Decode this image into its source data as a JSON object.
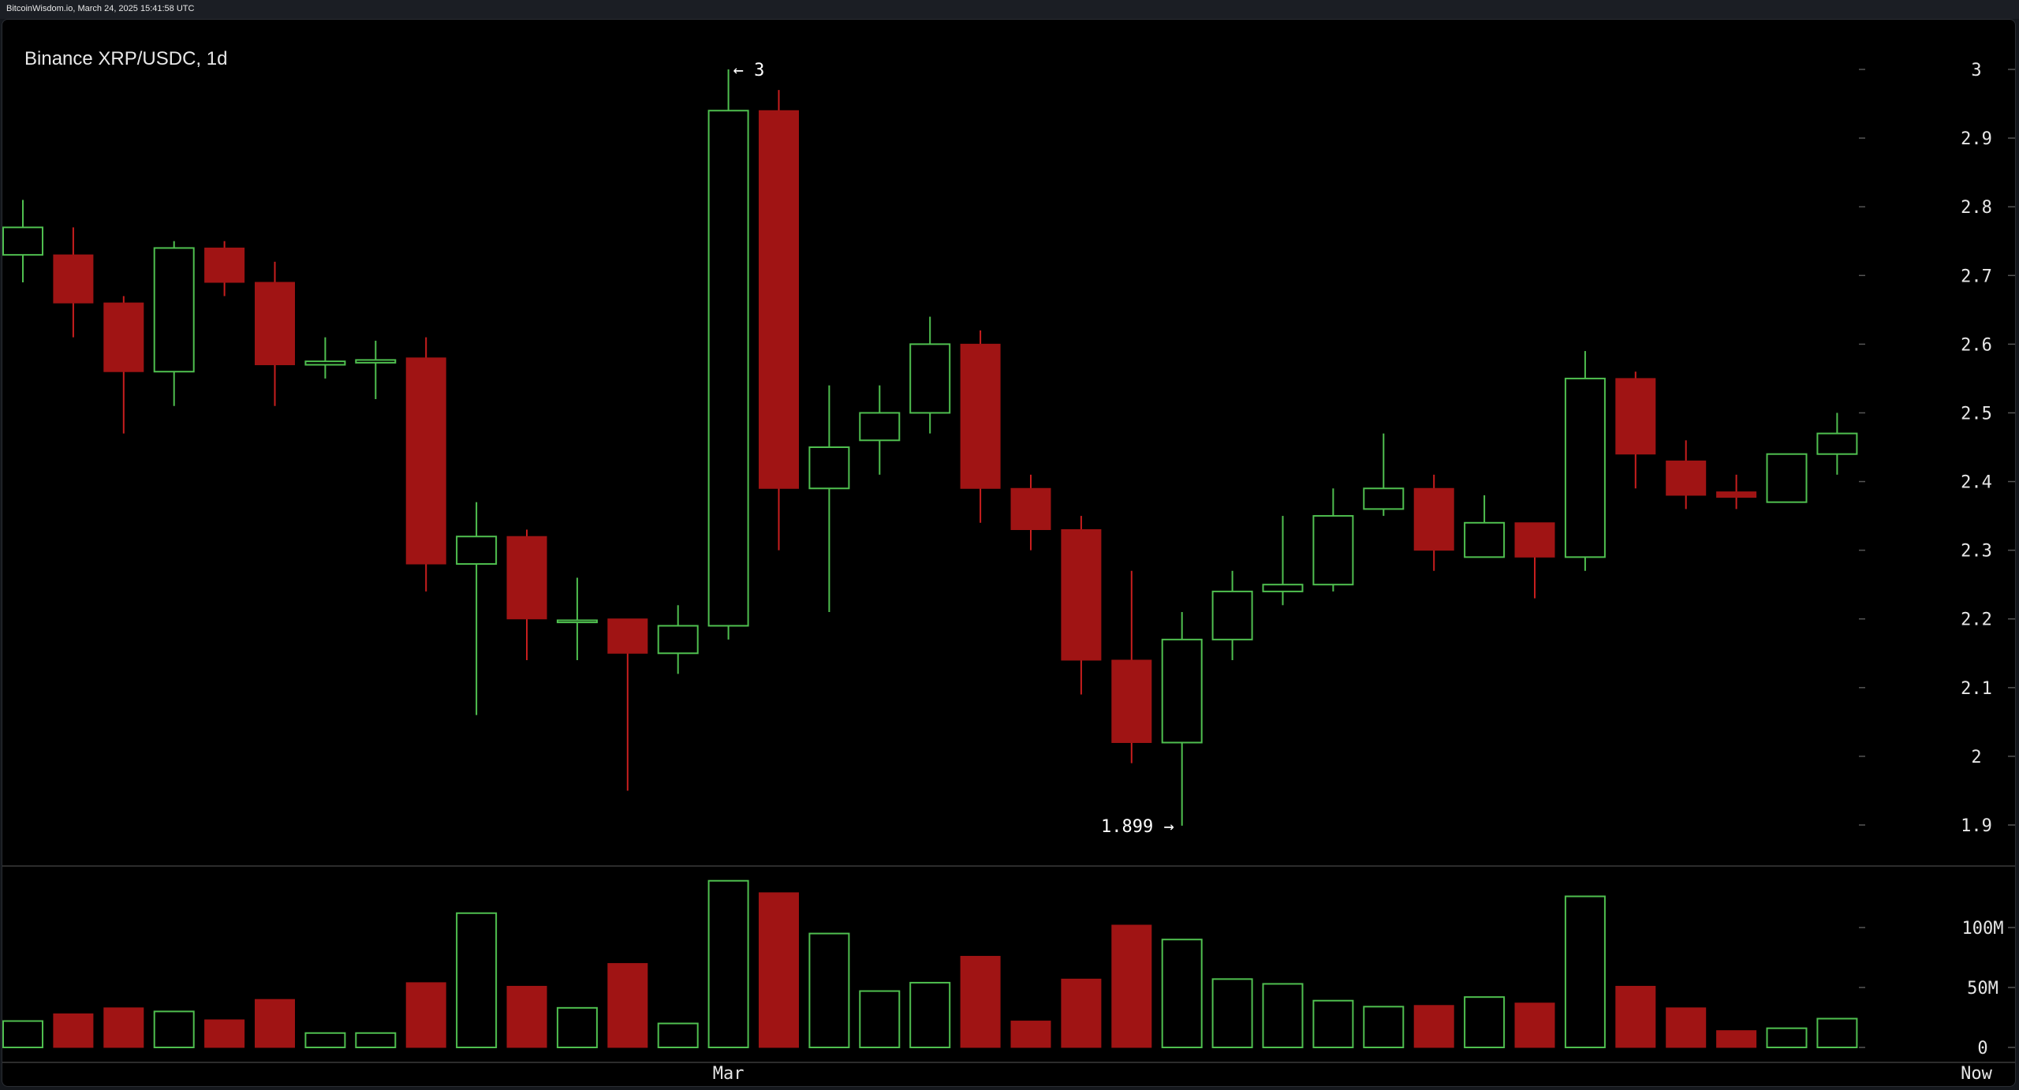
{
  "header": {
    "source_text": "BitcoinWisdom.io, March 24, 2025 15:41:58 UTC"
  },
  "colors": {
    "background": "#000000",
    "up": "#4fbf4f",
    "down": "#a01414",
    "down_wick": "#c81e1e",
    "text": "#e6e6e6",
    "separator": "#3a3a3a"
  },
  "chart_data": {
    "type": "candlestick",
    "title": "Binance XRP/USDC, 1d",
    "price_axis": {
      "ticks": [
        3,
        2.9,
        2.8,
        2.7,
        2.6,
        2.5,
        2.4,
        2.3,
        2.2,
        2.1,
        2,
        1.9
      ],
      "tick_labels": [
        "3",
        "2.9",
        "2.8",
        "2.7",
        "2.6",
        "2.5",
        "2.4",
        "2.3",
        "2.2",
        "2.1",
        "2",
        "1.9"
      ],
      "range": [
        1.9,
        3.0
      ]
    },
    "volume_axis": {
      "ticks": [
        100000000,
        50000000,
        0
      ],
      "tick_labels": [
        "100M",
        "50M",
        "0"
      ],
      "range": [
        0,
        140000000
      ]
    },
    "x_labels": [
      {
        "label": "Mar",
        "index": 14
      },
      {
        "label": "Now",
        "index": 38
      }
    ],
    "annotations": [
      {
        "text": "← 3",
        "index": 14,
        "value": 3.0,
        "side": "right"
      },
      {
        "text": "1.899 →",
        "index": 23,
        "value": 1.899,
        "side": "left"
      }
    ],
    "candles": [
      {
        "open": 2.73,
        "high": 2.81,
        "low": 2.69,
        "close": 2.77,
        "volume": 22000000
      },
      {
        "open": 2.73,
        "high": 2.77,
        "low": 2.61,
        "close": 2.66,
        "volume": 28000000
      },
      {
        "open": 2.66,
        "high": 2.67,
        "low": 2.47,
        "close": 2.56,
        "volume": 33000000
      },
      {
        "open": 2.56,
        "high": 2.75,
        "low": 2.51,
        "close": 2.74,
        "volume": 30000000
      },
      {
        "open": 2.74,
        "high": 2.75,
        "low": 2.67,
        "close": 2.69,
        "volume": 23000000
      },
      {
        "open": 2.69,
        "high": 2.72,
        "low": 2.51,
        "close": 2.57,
        "volume": 40000000
      },
      {
        "open": 2.57,
        "high": 2.61,
        "low": 2.55,
        "close": 2.575,
        "volume": 12000000
      },
      {
        "open": 2.573,
        "high": 2.605,
        "low": 2.52,
        "close": 2.577,
        "volume": 12000000
      },
      {
        "open": 2.58,
        "high": 2.61,
        "low": 2.24,
        "close": 2.28,
        "volume": 54000000
      },
      {
        "open": 2.28,
        "high": 2.37,
        "low": 2.06,
        "close": 2.32,
        "volume": 112000000
      },
      {
        "open": 2.32,
        "high": 2.33,
        "low": 2.14,
        "close": 2.2,
        "volume": 51000000
      },
      {
        "open": 2.195,
        "high": 2.26,
        "low": 2.14,
        "close": 2.198,
        "volume": 33000000
      },
      {
        "open": 2.2,
        "high": 2.2,
        "low": 1.95,
        "close": 2.15,
        "volume": 70000000
      },
      {
        "open": 2.15,
        "high": 2.22,
        "low": 2.12,
        "close": 2.19,
        "volume": 20000000
      },
      {
        "open": 2.19,
        "high": 3.0,
        "low": 2.17,
        "close": 2.94,
        "volume": 139000000
      },
      {
        "open": 2.94,
        "high": 2.97,
        "low": 2.3,
        "close": 2.39,
        "volume": 129000000
      },
      {
        "open": 2.39,
        "high": 2.54,
        "low": 2.21,
        "close": 2.45,
        "volume": 95000000
      },
      {
        "open": 2.46,
        "high": 2.54,
        "low": 2.41,
        "close": 2.5,
        "volume": 47000000
      },
      {
        "open": 2.5,
        "high": 2.64,
        "low": 2.47,
        "close": 2.6,
        "volume": 54000000
      },
      {
        "open": 2.6,
        "high": 2.62,
        "low": 2.34,
        "close": 2.39,
        "volume": 76000000
      },
      {
        "open": 2.39,
        "high": 2.41,
        "low": 2.3,
        "close": 2.33,
        "volume": 22000000
      },
      {
        "open": 2.33,
        "high": 2.35,
        "low": 2.09,
        "close": 2.14,
        "volume": 57000000
      },
      {
        "open": 2.14,
        "high": 2.27,
        "low": 1.99,
        "close": 2.02,
        "volume": 102000000
      },
      {
        "open": 2.02,
        "high": 2.21,
        "low": 1.899,
        "close": 2.17,
        "volume": 90000000
      },
      {
        "open": 2.17,
        "high": 2.27,
        "low": 2.14,
        "close": 2.24,
        "volume": 57000000
      },
      {
        "open": 2.24,
        "high": 2.35,
        "low": 2.22,
        "close": 2.25,
        "volume": 53000000
      },
      {
        "open": 2.25,
        "high": 2.39,
        "low": 2.24,
        "close": 2.35,
        "volume": 39000000
      },
      {
        "open": 2.36,
        "high": 2.47,
        "low": 2.35,
        "close": 2.39,
        "volume": 34000000
      },
      {
        "open": 2.39,
        "high": 2.41,
        "low": 2.27,
        "close": 2.3,
        "volume": 35000000
      },
      {
        "open": 2.29,
        "high": 2.38,
        "low": 2.29,
        "close": 2.34,
        "volume": 42000000
      },
      {
        "open": 2.34,
        "high": 2.34,
        "low": 2.23,
        "close": 2.29,
        "volume": 37000000
      },
      {
        "open": 2.29,
        "high": 2.59,
        "low": 2.27,
        "close": 2.55,
        "volume": 126000000
      },
      {
        "open": 2.55,
        "high": 2.56,
        "low": 2.39,
        "close": 2.44,
        "volume": 51000000
      },
      {
        "open": 2.43,
        "high": 2.46,
        "low": 2.36,
        "close": 2.38,
        "volume": 33000000
      },
      {
        "open": 2.385,
        "high": 2.41,
        "low": 2.36,
        "close": 2.377,
        "volume": 14000000
      },
      {
        "open": 2.37,
        "high": 2.44,
        "low": 2.37,
        "close": 2.44,
        "volume": 16000000
      },
      {
        "open": 2.44,
        "high": 2.5,
        "low": 2.41,
        "close": 2.47,
        "volume": 24000000
      }
    ]
  }
}
